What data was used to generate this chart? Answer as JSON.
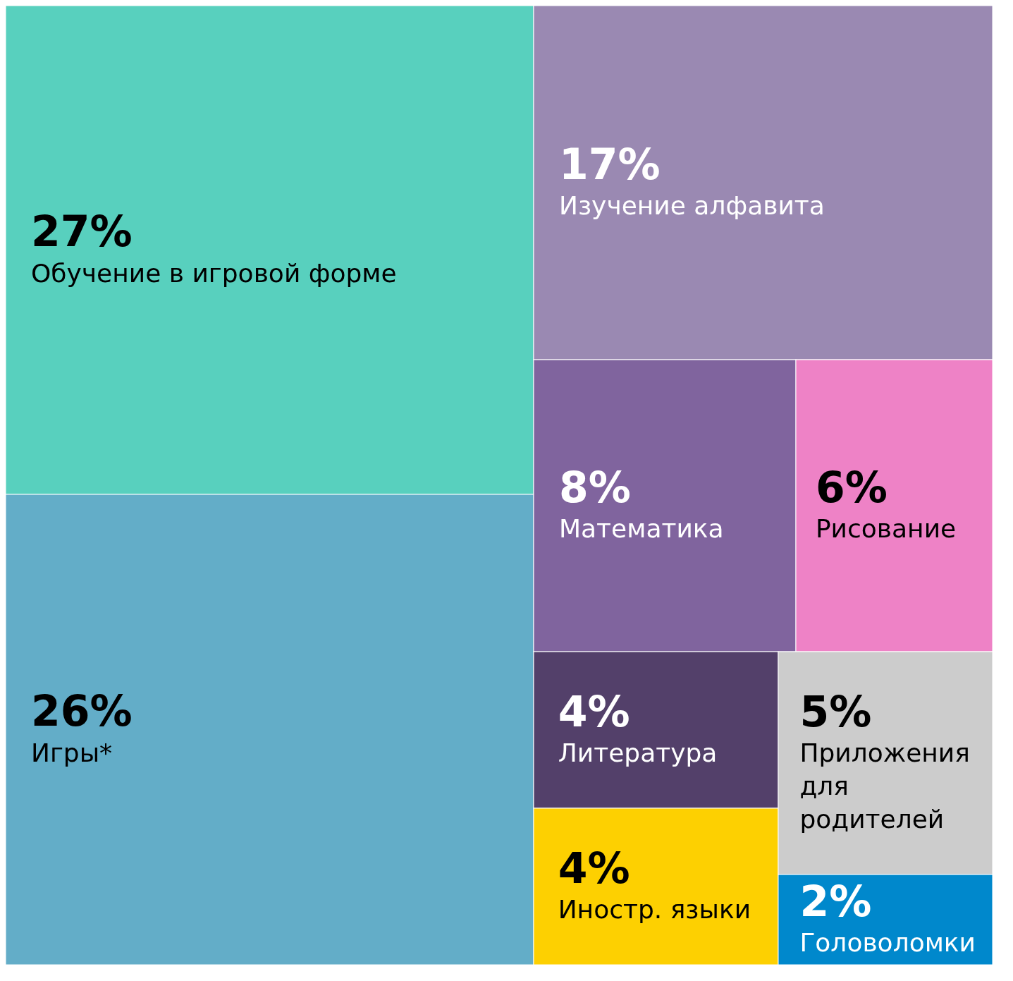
{
  "chart_data": {
    "type": "other",
    "categories": [
      "Обучение в игровой форме",
      "Игры*",
      "Изучение алфавита",
      "Математика",
      "Рисование",
      "Литература",
      "Иностр. языки",
      "Приложения для родителей",
      "Головоломки"
    ],
    "values": [
      27,
      26,
      17,
      8,
      6,
      4,
      4,
      5,
      2
    ],
    "value_labels": [
      "27%",
      "26%",
      "17%",
      "8%",
      "6%",
      "4%",
      "4%",
      "5%",
      "2%"
    ],
    "colors": [
      "#58d0be",
      "#63adc8",
      "#9a89b2",
      "#80649e",
      "#ee82c6",
      "#53406a",
      "#fdd001",
      "#cccccc",
      "#0088cc"
    ]
  }
}
